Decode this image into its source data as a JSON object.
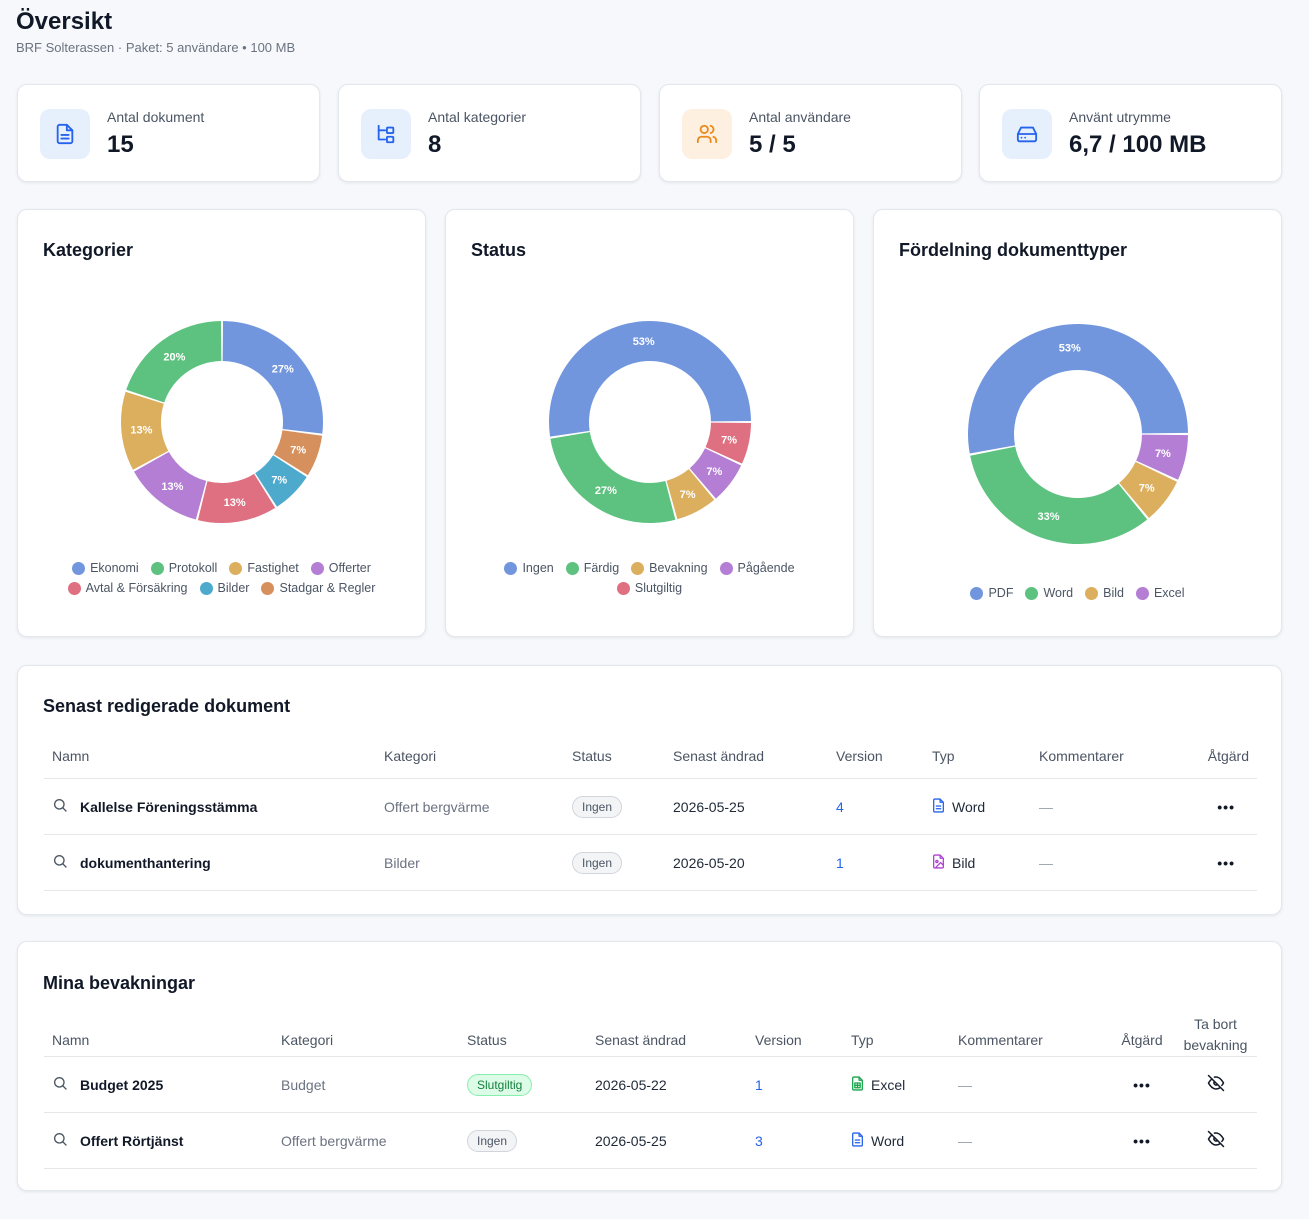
{
  "header": {
    "title": "Översikt",
    "subtitle": "BRF Solterassen · Paket: 5 användare • 100 MB"
  },
  "stats": [
    {
      "label": "Antal dokument",
      "value": "15",
      "icon": "document-icon",
      "color": "#2563eb",
      "bg": "#e6f0fd"
    },
    {
      "label": "Antal kategorier",
      "value": "8",
      "icon": "hierarchy-icon",
      "color": "#2563eb",
      "bg": "#e6f0fd"
    },
    {
      "label": "Antal användare",
      "value": "5 / 5",
      "icon": "users-icon",
      "color": "#ea8a1c",
      "bg": "#fdf0e1"
    },
    {
      "label": "Använt utrymme",
      "value": "6,7 / 100 MB",
      "icon": "storage-drive-icon",
      "color": "#2563eb",
      "bg": "#e6f0fd"
    }
  ],
  "charts": {
    "categories": {
      "title": "Kategorier",
      "chart_data": {
        "type": "pie",
        "labels": [
          "Ekonomi",
          "Stadgar & Regler",
          "Bilder",
          "Avtal & Försäkring",
          "Offerter",
          "Fastighet",
          "Protokoll"
        ],
        "values": [
          27,
          7,
          7,
          13,
          13,
          13,
          20
        ],
        "colors": [
          "#7296de",
          "#d6905e",
          "#4eaacc",
          "#de7081",
          "#b37ed4",
          "#dbaf5d",
          "#5dc27f"
        ],
        "legend": [
          {
            "label": "Ekonomi",
            "color": "#7296de"
          },
          {
            "label": "Protokoll",
            "color": "#5dc27f"
          },
          {
            "label": "Fastighet",
            "color": "#dbaf5d"
          },
          {
            "label": "Offerter",
            "color": "#b37ed4"
          },
          {
            "label": "Avtal & Försäkring",
            "color": "#de7081"
          },
          {
            "label": "Bilder",
            "color": "#4eaacc"
          },
          {
            "label": "Stadgar & Regler",
            "color": "#d6905e"
          }
        ]
      }
    },
    "status": {
      "title": "Status",
      "chart_data": {
        "type": "pie",
        "labels": [
          "Slutgiltig",
          "Pågående",
          "Bevakning",
          "Färdig",
          "Ingen"
        ],
        "values": [
          7,
          7,
          7,
          27,
          53
        ],
        "colors": [
          "#de7081",
          "#b37ed4",
          "#dbaf5d",
          "#5dc27f",
          "#7296de"
        ],
        "legend": [
          {
            "label": "Ingen",
            "color": "#7296de"
          },
          {
            "label": "Färdig",
            "color": "#5dc27f"
          },
          {
            "label": "Bevakning",
            "color": "#dbaf5d"
          },
          {
            "label": "Pågående",
            "color": "#b37ed4"
          },
          {
            "label": "Slutgiltig",
            "color": "#de7081"
          }
        ]
      }
    },
    "types": {
      "title": "Fördelning dokumenttyper",
      "chart_data": {
        "type": "pie",
        "labels": [
          "Excel",
          "Bild",
          "Word",
          "PDF"
        ],
        "values": [
          7,
          7,
          33,
          53
        ],
        "colors": [
          "#b37ed4",
          "#dbaf5d",
          "#5dc27f",
          "#7296de"
        ],
        "legend": [
          {
            "label": "PDF",
            "color": "#7296de"
          },
          {
            "label": "Word",
            "color": "#5dc27f"
          },
          {
            "label": "Bild",
            "color": "#dbaf5d"
          },
          {
            "label": "Excel",
            "color": "#b37ed4"
          }
        ]
      }
    }
  },
  "recent": {
    "title": "Senast redigerade dokument",
    "columns": [
      "Namn",
      "Kategori",
      "Status",
      "Senast ändrad",
      "Version",
      "Typ",
      "Kommentarer",
      "Åtgärd"
    ],
    "rows": [
      {
        "name": "Kallelse Föreningsstämma",
        "category": "Offert bergvärme",
        "status": "Ingen",
        "date": "2026-05-25",
        "version": "4",
        "type": "Word",
        "comments": "—",
        "action": "•••"
      },
      {
        "name": "dokumenthantering",
        "category": "Bilder",
        "status": "Ingen",
        "date": "2026-05-20",
        "version": "1",
        "type": "Bild",
        "comments": "—",
        "action": "•••"
      }
    ]
  },
  "watch": {
    "title": "Mina bevakningar",
    "columns": [
      "Namn",
      "Kategori",
      "Status",
      "Senast ändrad",
      "Version",
      "Typ",
      "Kommentarer",
      "Åtgärd"
    ],
    "remove_col_line1": "Ta bort",
    "remove_col_line2": "bevakning",
    "rows": [
      {
        "name": "Budget 2025",
        "category": "Budget",
        "status": "Slutgiltig",
        "date": "2026-05-22",
        "version": "1",
        "type": "Excel",
        "comments": "—",
        "action": "•••"
      },
      {
        "name": "Offert Rörtjänst",
        "category": "Offert bergvärme",
        "status": "Ingen",
        "date": "2026-05-25",
        "version": "3",
        "type": "Word",
        "comments": "—",
        "action": "•••"
      }
    ]
  }
}
